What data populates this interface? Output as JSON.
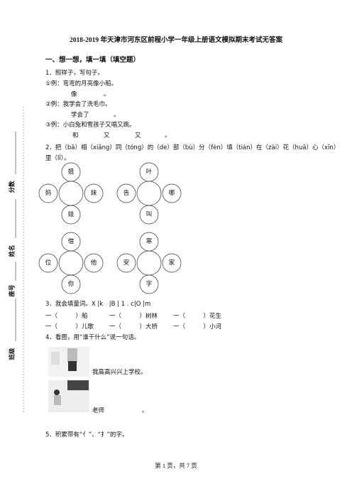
{
  "header": {
    "title": "2018-2019 年天津市河东区前程小学一年级上册语文模拟期末考试无答案"
  },
  "sidebar": [
    "分数",
    "姓名",
    "座号",
    "班级"
  ],
  "section": {
    "title": "一、想一想，填一填（填空题）"
  },
  "q1": {
    "title": "1．照样子，写句子。",
    "examples": [
      {
        "text": "①例：弯弯的月亮像小船。",
        "parts": [
          "像",
          "。"
        ]
      },
      {
        "text": "②例：我学会了洗毛巾。",
        "parts": [
          "学会了",
          "。"
        ]
      },
      {
        "text": "③例：小白兔和雪孩子又唱又跳。",
        "parts": [
          "和",
          "又",
          "又",
          "。"
        ]
      }
    ]
  },
  "q2": {
    "title": "2．把（bǎ）相（xiāng）同（tóng）的（de）部（bù）分（fèn）填（tián）在（zài）花（huā）心（xīn）里（lǐ）。",
    "flowers": [
      {
        "top": "姐",
        "left": "妈",
        "right": "妹",
        "bottom": "娃"
      },
      {
        "top": "叶",
        "left": "告",
        "right": "哪",
        "bottom": "叫"
      },
      {
        "top": "借",
        "left": "位",
        "right": "他",
        "bottom": "你"
      },
      {
        "top": "寒",
        "left": "安",
        "right": "家",
        "bottom": "字"
      }
    ]
  },
  "q3": {
    "title": "3．我会填量词。X |k　|B | 1 . c|O |m",
    "rows": [
      [
        "一（　　　）船",
        "一（　　　）树林",
        "一（　　　）花生"
      ],
      [
        "一（　　　）儿歌",
        "一（　　　）大桥",
        "一（　　　）小河"
      ]
    ]
  },
  "q4": {
    "title": "4．看图，用“谁干什么”说一句话。",
    "sentence1": "我高高兴兴上学校。",
    "sentence2": [
      "老师",
      "。"
    ]
  },
  "q5": {
    "title": "5．积累带有“亻”、“扌”的字。"
  },
  "footer": "第 1 页，共 7 页"
}
